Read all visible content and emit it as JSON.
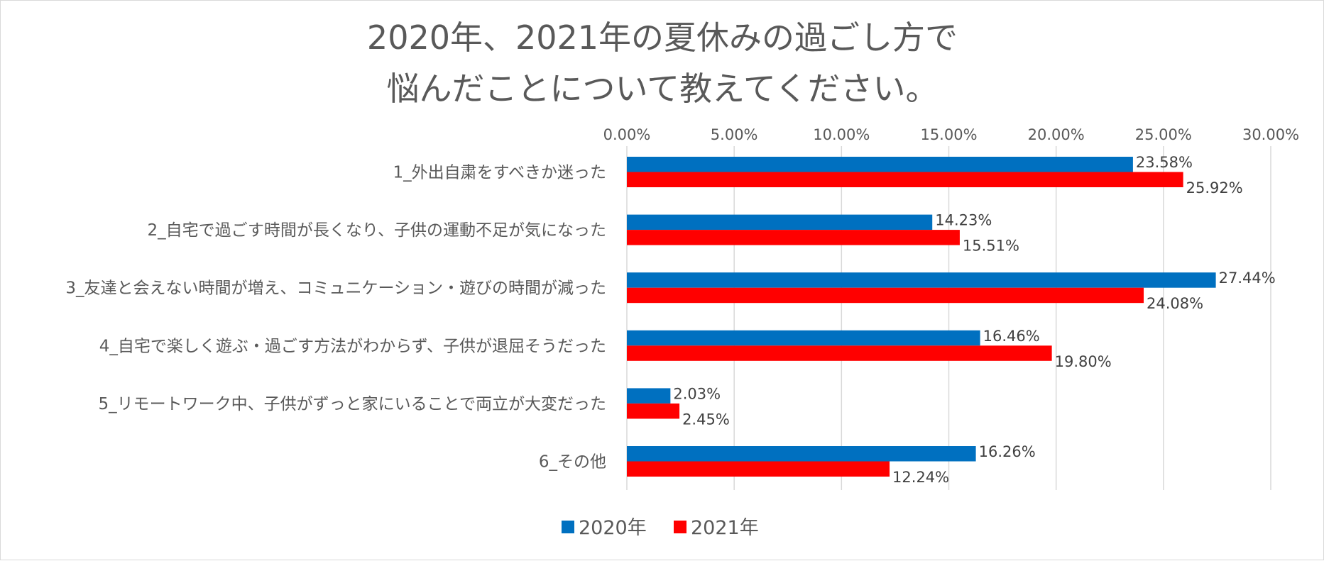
{
  "chart_data": {
    "type": "bar",
    "orientation": "horizontal",
    "title": [
      "2020年、2021年の夏休みの過ごし方で",
      "悩んだことについて教えてください。"
    ],
    "categories": [
      "1_外出自粛をすべきか迷った",
      "2_自宅で過ごす時間が長くなり、子供の運動不足が気になった",
      "3_友達と会えない時間が増え、コミュニケーション・遊びの時間が減った",
      "4_自宅で楽しく遊ぶ・過ごす方法がわからず、子供が退屈そうだった",
      "5_リモートワーク中、子供がずっと家にいることで両立が大変だった",
      "6_その他"
    ],
    "series": [
      {
        "name": "2020年",
        "color": "#0070C0",
        "values": [
          23.58,
          14.23,
          27.44,
          16.46,
          2.03,
          16.26
        ]
      },
      {
        "name": "2021年",
        "color": "#FF0000",
        "values": [
          25.92,
          15.51,
          24.08,
          19.8,
          2.45,
          12.24
        ]
      }
    ],
    "xlim": [
      0,
      30
    ],
    "xticks": [
      0,
      5,
      10,
      15,
      20,
      25,
      30
    ],
    "xtick_labels": [
      "0.00%",
      "5.00%",
      "10.00%",
      "15.00%",
      "20.00%",
      "25.00%",
      "30.00%"
    ],
    "xaxis_position": "top",
    "value_suffix": "%",
    "grid": true,
    "legend_position": "bottom"
  }
}
